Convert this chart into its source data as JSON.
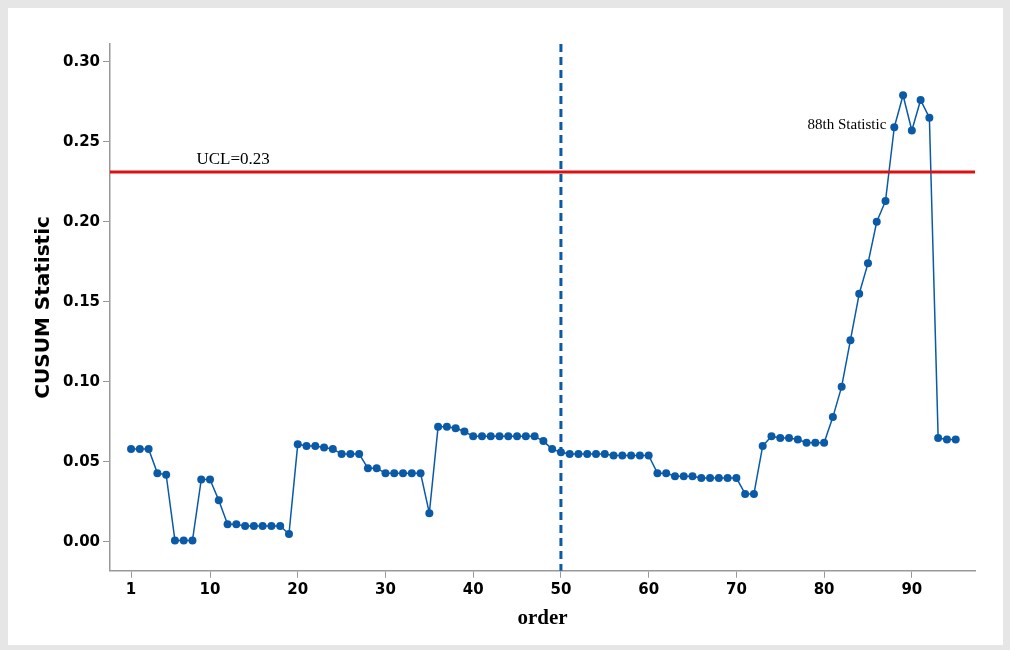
{
  "chart_data": {
    "type": "line",
    "xlabel": "order",
    "ylabel": "CUSUM Statistic",
    "x": [
      1,
      2,
      3,
      4,
      5,
      6,
      7,
      8,
      9,
      10,
      11,
      12,
      13,
      14,
      15,
      16,
      17,
      18,
      19,
      20,
      21,
      22,
      23,
      24,
      25,
      26,
      27,
      28,
      29,
      30,
      31,
      32,
      33,
      34,
      35,
      36,
      37,
      38,
      39,
      40,
      41,
      42,
      43,
      44,
      45,
      46,
      47,
      48,
      49,
      50,
      51,
      52,
      53,
      54,
      55,
      56,
      57,
      58,
      59,
      60,
      61,
      62,
      63,
      64,
      65,
      66,
      67,
      68,
      69,
      70,
      71,
      72,
      73,
      74,
      75,
      76,
      77,
      78,
      79,
      80,
      81,
      82,
      83,
      84,
      85,
      86,
      87,
      88,
      89,
      90,
      91,
      92,
      93,
      94,
      95
    ],
    "series": [
      {
        "color": "#0a5aa8",
        "values": [
          0.058,
          0.058,
          0.058,
          0.043,
          0.042,
          0.001,
          0.001,
          0.001,
          0.039,
          0.039,
          0.026,
          0.011,
          0.011,
          0.01,
          0.01,
          0.01,
          0.01,
          0.01,
          0.005,
          0.061,
          0.06,
          0.06,
          0.059,
          0.058,
          0.055,
          0.055,
          0.055,
          0.046,
          0.046,
          0.043,
          0.043,
          0.043,
          0.043,
          0.043,
          0.018,
          0.072,
          0.072,
          0.071,
          0.069,
          0.066,
          0.066,
          0.066,
          0.066,
          0.066,
          0.066,
          0.066,
          0.066,
          0.063,
          0.058,
          0.056,
          0.055,
          0.055,
          0.055,
          0.055,
          0.055,
          0.054,
          0.054,
          0.054,
          0.054,
          0.054,
          0.043,
          0.043,
          0.041,
          0.041,
          0.041,
          0.04,
          0.04,
          0.04,
          0.04,
          0.04,
          0.03,
          0.03,
          0.06,
          0.066,
          0.065,
          0.065,
          0.064,
          0.062,
          0.062,
          0.062,
          0.078,
          0.097,
          0.126,
          0.155,
          0.174,
          0.2,
          0.213,
          0.259,
          0.279,
          0.257,
          0.276,
          0.265,
          0.065,
          0.064,
          0.064
        ]
      }
    ],
    "xlim": [
      -1.4,
      97.2
    ],
    "xticks": [
      1,
      10,
      20,
      30,
      40,
      50,
      60,
      70,
      80,
      90
    ],
    "ylim": [
      -0.018,
      0.311
    ],
    "yticks": [
      {
        "value": 0,
        "label": "0.00"
      },
      {
        "value": 0.05,
        "label": "0.05"
      },
      {
        "value": 0.1,
        "label": "0.10"
      },
      {
        "value": 0.15,
        "label": "0.15"
      },
      {
        "value": 0.2,
        "label": "0.20"
      },
      {
        "value": 0.25,
        "label": "0.25"
      },
      {
        "value": 0.3,
        "label": "0.30"
      }
    ],
    "ref_lines": [
      {
        "axis": "y",
        "value": 0.231,
        "label": "UCL=0.23",
        "color": "#dd1111",
        "line_style": "solid"
      },
      {
        "axis": "x",
        "value": 50,
        "color": "#0a5aa8",
        "line_style": "dashed"
      }
    ],
    "annotations": [
      {
        "text": "88th Statistic",
        "x": 88,
        "y": 0.259
      }
    ],
    "grid": false,
    "legend": false,
    "marker": "circle",
    "line_style": "solid"
  }
}
